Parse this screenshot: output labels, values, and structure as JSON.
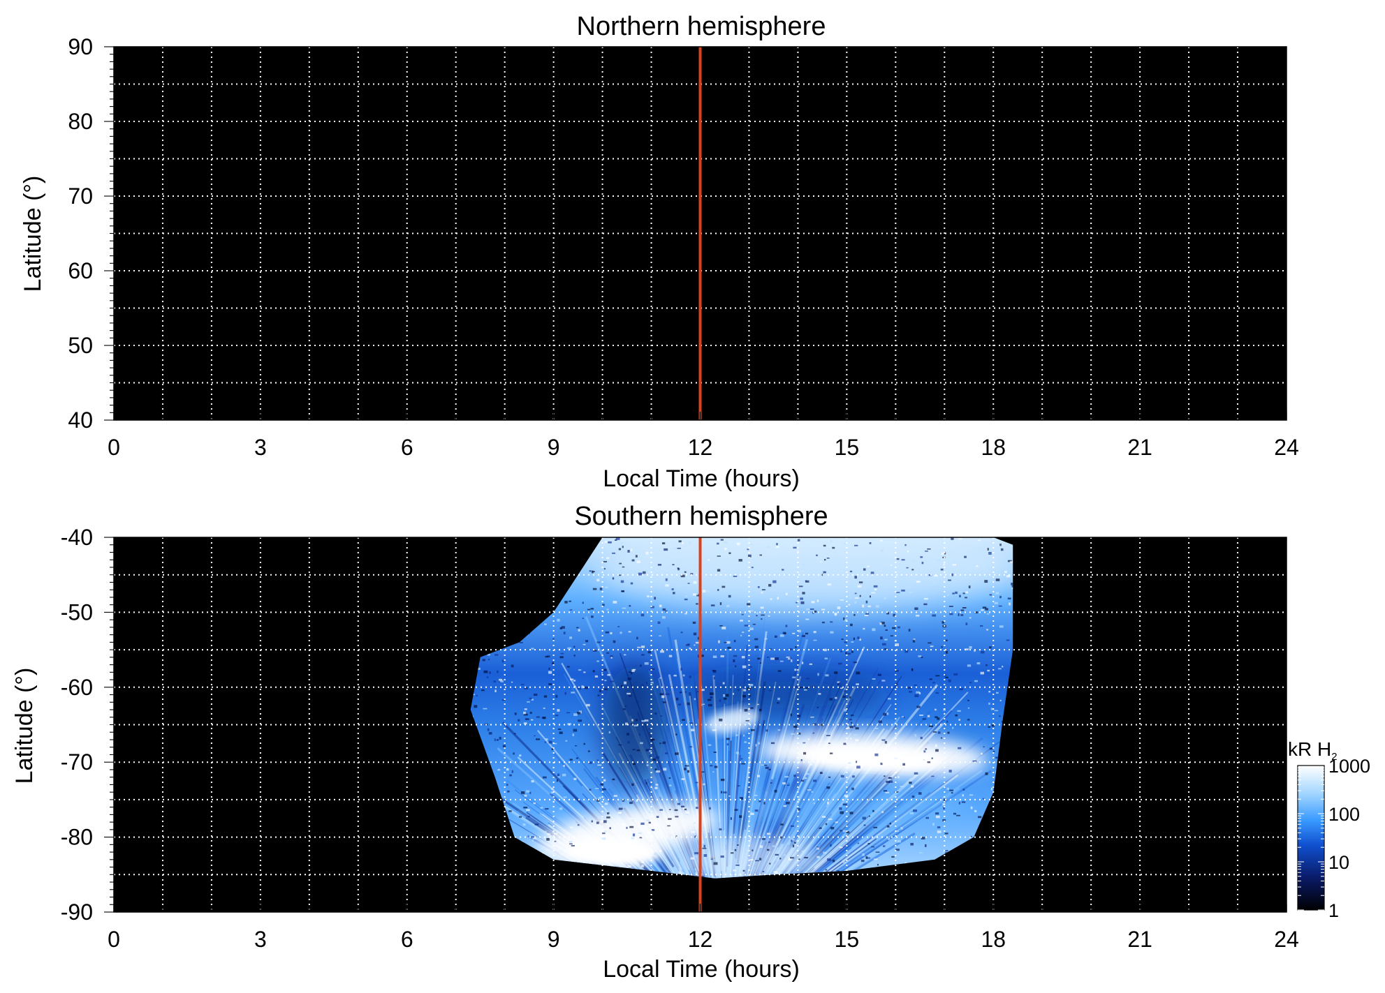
{
  "chart_data": [
    {
      "type": "heatmap",
      "title": "Northern hemisphere",
      "xlabel": "Local Time (hours)",
      "ylabel": "Latitude (°)",
      "xlim": [
        0,
        24
      ],
      "ylim": [
        40,
        90
      ],
      "xticks": [
        "0",
        "3",
        "6",
        "9",
        "12",
        "15",
        "18",
        "21",
        "24"
      ],
      "yticks": [
        "90",
        "80",
        "70",
        "60",
        "50",
        "40"
      ],
      "grid": true,
      "grid_style": "dotted white",
      "vertical_marker": {
        "x": 12,
        "color": "#d9421a"
      },
      "background_color": "#000000",
      "emission": []
    },
    {
      "type": "heatmap",
      "title": "Southern hemisphere",
      "xlabel": "Local Time (hours)",
      "ylabel": "Latitude (°)",
      "xlim": [
        0,
        24
      ],
      "ylim": [
        -90,
        -40
      ],
      "xticks": [
        "0",
        "3",
        "6",
        "9",
        "12",
        "15",
        "18",
        "21",
        "24"
      ],
      "yticks": [
        "-40",
        "-50",
        "-60",
        "-70",
        "-80",
        "-90"
      ],
      "grid": true,
      "grid_style": "dotted white",
      "vertical_marker": {
        "x": 12,
        "color": "#d9421a"
      },
      "background_color": "#000000",
      "coverage_boundary": [
        [
          10.0,
          -40
        ],
        [
          9.5,
          -45
        ],
        [
          9.0,
          -50
        ],
        [
          8.3,
          -54
        ],
        [
          7.5,
          -56
        ],
        [
          7.3,
          -63
        ],
        [
          7.8,
          -72
        ],
        [
          8.2,
          -80
        ],
        [
          9.0,
          -83
        ],
        [
          11.0,
          -84.5
        ],
        [
          12.3,
          -85.5
        ],
        [
          13.5,
          -85
        ],
        [
          15.0,
          -84.5
        ],
        [
          16.8,
          -83
        ],
        [
          17.6,
          -80
        ],
        [
          18.0,
          -74
        ],
        [
          18.2,
          -64
        ],
        [
          18.4,
          -55
        ],
        [
          18.4,
          -48
        ],
        [
          18.4,
          -41
        ],
        [
          18.0,
          -40
        ]
      ],
      "bright_features": [
        {
          "name": "dawn oval arc",
          "lt_range": [
            8.5,
            12.5
          ],
          "lat_range": [
            -83,
            -76
          ],
          "level": "1000"
        },
        {
          "name": "afternoon oval arc",
          "lt_range": [
            13,
            18
          ],
          "lat_range": [
            -72,
            -66
          ],
          "level": "1000"
        },
        {
          "name": "noon spot",
          "lt_range": [
            12,
            13.5
          ],
          "lat_range": [
            -66,
            -63
          ],
          "level": "500"
        },
        {
          "name": "low-latitude glow",
          "lt_range": [
            10,
            18.4
          ],
          "lat_range": [
            -50,
            -40
          ],
          "level": "200-600"
        }
      ],
      "colorbar": {
        "label": "kR H",
        "label_subscript": "2",
        "scale": "log",
        "range": [
          1,
          1000
        ],
        "ticks": [
          "1000",
          "100",
          "10",
          "1"
        ],
        "colors": [
          "#000000",
          "#0a1a66",
          "#1050d0",
          "#3a9aff",
          "#9fd4ff",
          "#ffffff"
        ]
      }
    }
  ]
}
